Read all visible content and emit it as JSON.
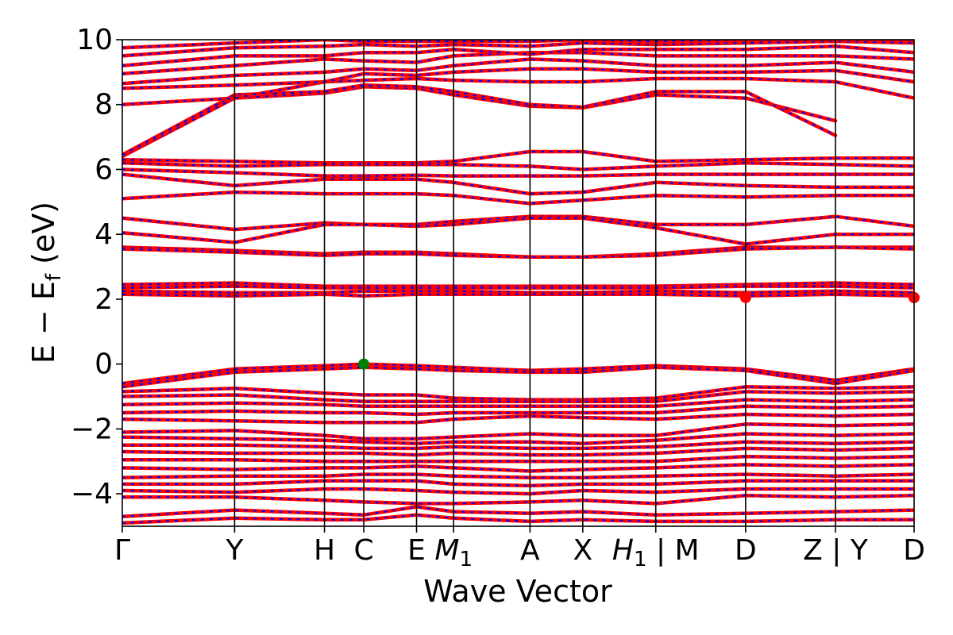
{
  "chart_data": {
    "type": "line",
    "title": "",
    "xlabel": "Wave Vector",
    "ylabel": "E − E",
    "ylabel_sub": "f",
    "ylabel_unit": " (eV)",
    "ylim": [
      -5,
      10
    ],
    "yticks": [
      {
        "value": 10,
        "label": "10"
      },
      {
        "value": 8,
        "label": "8"
      },
      {
        "value": 6,
        "label": "6"
      },
      {
        "value": 4,
        "label": "4"
      },
      {
        "value": 2,
        "label": "2"
      },
      {
        "value": 0,
        "label": "0"
      },
      {
        "value": -2,
        "label": "−2"
      },
      {
        "value": -4,
        "label": "−4"
      }
    ],
    "kpoints": [
      {
        "k": 0.0,
        "label": "Γ"
      },
      {
        "k": 1.0,
        "label": "Y"
      },
      {
        "k": 1.8,
        "label": "H"
      },
      {
        "k": 2.15,
        "label": "C"
      },
      {
        "k": 2.62,
        "label": "E"
      },
      {
        "k": 2.95,
        "label": "M",
        "sub": "1"
      },
      {
        "k": 3.63,
        "label": "A"
      },
      {
        "k": 4.1,
        "label": "X"
      },
      {
        "k": 4.75,
        "label": "H",
        "sub": "1",
        "suffix": " | M"
      },
      {
        "k": 5.55,
        "label": "D"
      },
      {
        "k": 6.35,
        "label": "Z | Y"
      },
      {
        "k": 7.05,
        "label": "D"
      }
    ],
    "grid": false,
    "band_colors": {
      "primary": "#ff0000",
      "secondary": "#0000ff"
    },
    "marker_colors": {
      "cbm": "#ff0000",
      "vbm": "#008000"
    },
    "bands": [
      {
        "E": [
          6.4,
          8.2,
          8.35,
          8.55,
          8.5,
          8.3,
          7.95,
          7.9,
          8.3,
          8.2,
          7.5,
          null
        ]
      },
      {
        "E": [
          6.45,
          8.3,
          8.4,
          8.6,
          8.55,
          8.4,
          8.0,
          7.92,
          8.4,
          8.4,
          7.05,
          null
        ]
      },
      {
        "E": [
          8.0,
          8.2,
          8.7,
          8.75,
          8.8,
          8.75,
          8.7,
          8.7,
          8.8,
          8.8,
          8.7,
          8.2
        ]
      },
      {
        "E": [
          8.5,
          8.6,
          8.7,
          8.95,
          8.9,
          9.0,
          9.1,
          9.1,
          9.0,
          9.0,
          9.05,
          8.7
        ]
      },
      {
        "E": [
          8.65,
          8.9,
          9.0,
          9.1,
          9.05,
          9.2,
          9.4,
          9.35,
          9.2,
          9.2,
          9.3,
          9.0
        ]
      },
      {
        "E": [
          8.95,
          9.2,
          9.4,
          9.35,
          9.3,
          9.5,
          9.6,
          9.6,
          9.5,
          9.5,
          9.5,
          9.4
        ]
      },
      {
        "E": [
          9.2,
          9.5,
          9.5,
          9.6,
          9.6,
          9.7,
          9.55,
          9.7,
          9.7,
          9.7,
          9.8,
          9.6
        ]
      },
      {
        "E": [
          9.5,
          9.75,
          9.8,
          9.85,
          9.8,
          9.85,
          9.8,
          9.9,
          9.85,
          9.9,
          9.95,
          9.9
        ]
      },
      {
        "E": [
          9.75,
          9.9,
          10.0,
          9.95,
          9.95,
          9.95,
          9.95,
          10.0,
          9.95,
          10.0,
          10.0,
          10.0
        ]
      },
      {
        "E": [
          6.3,
          6.25,
          6.2,
          6.2,
          6.2,
          6.25,
          6.55,
          6.55,
          6.25,
          6.3,
          6.35,
          6.35
        ]
      },
      {
        "E": [
          6.2,
          6.1,
          6.15,
          6.15,
          6.15,
          6.15,
          6.1,
          6.0,
          6.1,
          6.2,
          6.15,
          6.1
        ]
      },
      {
        "E": [
          6.0,
          5.9,
          5.8,
          5.8,
          5.82,
          5.8,
          5.8,
          5.8,
          5.85,
          5.85,
          5.85,
          5.85
        ]
      },
      {
        "E": [
          5.85,
          5.5,
          5.7,
          5.7,
          5.7,
          5.6,
          5.25,
          5.3,
          5.6,
          5.5,
          5.45,
          5.45
        ]
      },
      {
        "E": [
          5.1,
          5.3,
          5.25,
          5.25,
          5.25,
          5.2,
          4.95,
          5.05,
          5.2,
          5.15,
          5.2,
          5.2
        ]
      },
      {
        "E": [
          4.5,
          4.15,
          4.35,
          4.3,
          4.3,
          4.4,
          4.55,
          4.55,
          4.3,
          4.3,
          4.55,
          4.25
        ]
      },
      {
        "E": [
          4.05,
          3.75,
          4.3,
          4.3,
          4.25,
          4.3,
          4.5,
          4.5,
          4.2,
          3.7,
          4.0,
          4.0
        ]
      },
      {
        "E": [
          3.6,
          3.5,
          3.4,
          3.45,
          3.45,
          3.4,
          3.3,
          3.3,
          3.4,
          3.6,
          3.6,
          3.6
        ]
      },
      {
        "E": [
          3.55,
          3.45,
          3.35,
          3.4,
          3.4,
          3.35,
          3.3,
          3.3,
          3.35,
          3.55,
          3.6,
          3.55
        ]
      },
      {
        "E": [
          2.45,
          2.5,
          2.4,
          2.4,
          2.4,
          2.4,
          2.4,
          2.4,
          2.4,
          2.45,
          2.5,
          2.45
        ]
      },
      {
        "E": [
          2.35,
          2.4,
          2.35,
          2.35,
          2.35,
          2.35,
          2.35,
          2.35,
          2.35,
          2.4,
          2.4,
          2.35
        ]
      },
      {
        "E": [
          2.25,
          2.2,
          2.2,
          2.25,
          2.25,
          2.25,
          2.2,
          2.2,
          2.25,
          2.2,
          2.25,
          2.2
        ]
      },
      {
        "E": [
          2.15,
          2.1,
          2.15,
          2.1,
          2.15,
          2.15,
          2.15,
          2.15,
          2.15,
          2.1,
          2.15,
          2.1
        ]
      },
      {
        "E": [
          -0.6,
          -0.15,
          -0.05,
          0.0,
          -0.05,
          -0.1,
          -0.2,
          -0.15,
          -0.05,
          -0.15,
          -0.5,
          -0.15
        ]
      },
      {
        "E": [
          -0.7,
          -0.25,
          -0.15,
          -0.1,
          -0.15,
          -0.2,
          -0.25,
          -0.25,
          -0.1,
          -0.2,
          -0.6,
          -0.2
        ]
      },
      {
        "E": [
          -0.85,
          -0.75,
          -0.9,
          -0.95,
          -0.95,
          -1.05,
          -1.1,
          -1.1,
          -1.05,
          -0.7,
          -0.75,
          -0.7
        ]
      },
      {
        "E": [
          -1.0,
          -0.95,
          -1.1,
          -1.15,
          -1.15,
          -1.15,
          -1.15,
          -1.15,
          -1.15,
          -0.85,
          -0.9,
          -0.85
        ]
      },
      {
        "E": [
          -1.25,
          -1.2,
          -1.25,
          -1.3,
          -1.3,
          -1.3,
          -1.3,
          -1.3,
          -1.3,
          -1.1,
          -1.15,
          -1.1
        ]
      },
      {
        "E": [
          -1.5,
          -1.45,
          -1.5,
          -1.5,
          -1.55,
          -1.5,
          -1.5,
          -1.5,
          -1.5,
          -1.3,
          -1.35,
          -1.3
        ]
      },
      {
        "E": [
          -1.7,
          -1.75,
          -1.8,
          -1.8,
          -1.8,
          -1.7,
          -1.6,
          -1.65,
          -1.7,
          -1.55,
          -1.6,
          -1.55
        ]
      },
      {
        "E": [
          -2.1,
          -2.05,
          -2.2,
          -2.3,
          -2.3,
          -2.25,
          -2.15,
          -2.2,
          -2.2,
          -1.85,
          -1.9,
          -1.85
        ]
      },
      {
        "E": [
          -2.25,
          -2.3,
          -2.35,
          -2.4,
          -2.45,
          -2.4,
          -2.4,
          -2.45,
          -2.35,
          -2.15,
          -2.2,
          -2.15
        ]
      },
      {
        "E": [
          -2.5,
          -2.5,
          -2.55,
          -2.6,
          -2.6,
          -2.55,
          -2.6,
          -2.6,
          -2.55,
          -2.4,
          -2.45,
          -2.4
        ]
      },
      {
        "E": [
          -2.7,
          -2.75,
          -2.75,
          -2.75,
          -2.8,
          -2.75,
          -2.8,
          -2.8,
          -2.75,
          -2.6,
          -2.65,
          -2.6
        ]
      },
      {
        "E": [
          -2.95,
          -2.95,
          -3.0,
          -3.0,
          -3.0,
          -3.0,
          -3.0,
          -3.0,
          -3.0,
          -2.85,
          -2.9,
          -2.85
        ]
      },
      {
        "E": [
          -3.2,
          -3.25,
          -3.2,
          -3.2,
          -3.15,
          -3.2,
          -3.3,
          -3.25,
          -3.2,
          -3.1,
          -3.15,
          -3.1
        ]
      },
      {
        "E": [
          -3.5,
          -3.45,
          -3.45,
          -3.4,
          -3.4,
          -3.45,
          -3.5,
          -3.5,
          -3.45,
          -3.4,
          -3.45,
          -3.4
        ]
      },
      {
        "E": [
          -3.7,
          -3.7,
          -3.6,
          -3.6,
          -3.6,
          -3.7,
          -3.75,
          -3.7,
          -3.7,
          -3.6,
          -3.6,
          -3.6
        ]
      },
      {
        "E": [
          -3.9,
          -3.95,
          -3.85,
          -3.85,
          -3.9,
          -3.95,
          -4.0,
          -3.9,
          -3.95,
          -3.85,
          -3.85,
          -3.85
        ]
      },
      {
        "E": [
          -4.1,
          -4.1,
          -4.2,
          -4.25,
          -4.3,
          -4.3,
          -4.25,
          -4.2,
          -4.3,
          -4.05,
          -4.1,
          -4.05
        ]
      },
      {
        "E": [
          -4.7,
          -4.5,
          -4.6,
          -4.65,
          -4.4,
          -4.55,
          -4.6,
          -4.55,
          -4.65,
          -4.6,
          -4.55,
          -4.5
        ]
      },
      {
        "E": [
          -4.9,
          -4.75,
          -4.8,
          -4.8,
          -4.65,
          -4.75,
          -4.85,
          -4.8,
          -4.85,
          -4.85,
          -4.8,
          -4.8
        ]
      }
    ],
    "markers": [
      {
        "k": 5.55,
        "E": 2.05,
        "kind": "cbm"
      },
      {
        "k": 7.05,
        "E": 2.05,
        "kind": "cbm"
      },
      {
        "k": 2.15,
        "E": 0.0,
        "kind": "vbm"
      }
    ]
  }
}
